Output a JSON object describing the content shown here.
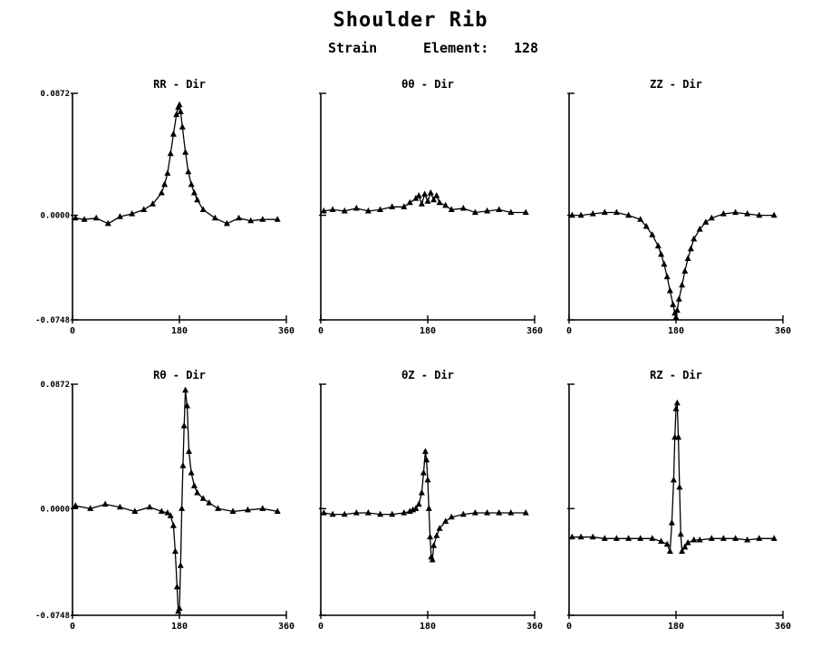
{
  "figure": {
    "title": "Shoulder Rib",
    "subtitle": "Strain",
    "element_label": "Element:",
    "element_value": "128"
  },
  "chart_data": [
    {
      "type": "line",
      "title": "RR - Dir",
      "xticks": [
        "0",
        "180",
        "360"
      ],
      "yticks": [
        "0.0872",
        "0.0000",
        "-0.0748"
      ],
      "xlim": [
        0,
        360
      ],
      "ylim": [
        -0.0748,
        0.0872
      ],
      "x": [
        5,
        20,
        40,
        60,
        80,
        100,
        120,
        135,
        150,
        155,
        160,
        165,
        170,
        175,
        178,
        180,
        182,
        185,
        190,
        195,
        200,
        205,
        210,
        220,
        240,
        260,
        280,
        300,
        320,
        345
      ],
      "y": [
        -0.002,
        -0.003,
        -0.002,
        -0.006,
        -0.001,
        0.001,
        0.004,
        0.008,
        0.016,
        0.022,
        0.03,
        0.044,
        0.058,
        0.072,
        0.077,
        0.079,
        0.074,
        0.063,
        0.045,
        0.031,
        0.022,
        0.016,
        0.011,
        0.004,
        -0.002,
        -0.006,
        -0.002,
        -0.004,
        -0.003,
        -0.003
      ]
    },
    {
      "type": "line",
      "title": "θθ - Dir",
      "xticks": [
        "0",
        "180",
        "360"
      ],
      "xlim": [
        0,
        360
      ],
      "ylim": [
        -0.0748,
        0.0872
      ],
      "x": [
        5,
        20,
        40,
        60,
        80,
        100,
        120,
        140,
        150,
        160,
        165,
        170,
        175,
        180,
        185,
        190,
        195,
        200,
        210,
        220,
        240,
        260,
        280,
        300,
        320,
        345
      ],
      "y": [
        0.003,
        0.004,
        0.003,
        0.005,
        0.003,
        0.004,
        0.006,
        0.006,
        0.009,
        0.012,
        0.014,
        0.008,
        0.015,
        0.01,
        0.016,
        0.011,
        0.014,
        0.009,
        0.007,
        0.004,
        0.005,
        0.002,
        0.003,
        0.004,
        0.002,
        0.002
      ]
    },
    {
      "type": "line",
      "title": "ZZ - Dir",
      "xticks": [
        "0",
        "180",
        "360"
      ],
      "xlim": [
        0,
        360
      ],
      "ylim": [
        -0.0748,
        0.0872
      ],
      "x": [
        5,
        20,
        40,
        60,
        80,
        100,
        120,
        130,
        140,
        150,
        155,
        160,
        165,
        170,
        175,
        178,
        180,
        182,
        185,
        190,
        195,
        200,
        205,
        210,
        220,
        230,
        240,
        260,
        280,
        300,
        320,
        345
      ],
      "y": [
        0.0,
        0.0,
        0.001,
        0.002,
        0.002,
        0.0,
        -0.003,
        -0.008,
        -0.014,
        -0.022,
        -0.028,
        -0.035,
        -0.044,
        -0.054,
        -0.064,
        -0.07,
        -0.073,
        -0.068,
        -0.06,
        -0.05,
        -0.04,
        -0.031,
        -0.024,
        -0.017,
        -0.01,
        -0.005,
        -0.002,
        0.001,
        0.002,
        0.001,
        0.0,
        0.0
      ]
    },
    {
      "type": "line",
      "title": "Rθ - Dir",
      "xticks": [
        "0",
        "180",
        "360"
      ],
      "yticks": [
        "0.0872",
        "0.0000",
        "-0.0748"
      ],
      "xlim": [
        0,
        360
      ],
      "ylim": [
        -0.0748,
        0.0872
      ],
      "x": [
        5,
        30,
        55,
        80,
        105,
        130,
        150,
        160,
        165,
        170,
        173,
        176,
        178,
        180,
        182,
        184,
        186,
        188,
        190,
        193,
        196,
        200,
        205,
        210,
        220,
        230,
        245,
        270,
        295,
        320,
        345
      ],
      "y": [
        0.002,
        0.0,
        0.003,
        0.001,
        -0.002,
        0.001,
        -0.002,
        -0.003,
        -0.005,
        -0.012,
        -0.03,
        -0.055,
        -0.072,
        -0.07,
        -0.04,
        0.0,
        0.03,
        0.058,
        0.083,
        0.072,
        0.04,
        0.025,
        0.016,
        0.011,
        0.007,
        0.004,
        0.0,
        -0.002,
        -0.001,
        0.0,
        -0.002
      ]
    },
    {
      "type": "line",
      "title": "θZ - Dir",
      "xticks": [
        "0",
        "180",
        "360"
      ],
      "xlim": [
        0,
        360
      ],
      "ylim": [
        -0.0748,
        0.0872
      ],
      "x": [
        5,
        20,
        40,
        60,
        80,
        100,
        120,
        140,
        150,
        155,
        160,
        165,
        170,
        173,
        176,
        178,
        180,
        182,
        184,
        186,
        188,
        190,
        195,
        200,
        210,
        220,
        240,
        260,
        280,
        300,
        320,
        345
      ],
      "y": [
        -0.003,
        -0.004,
        -0.004,
        -0.003,
        -0.003,
        -0.004,
        -0.004,
        -0.003,
        -0.002,
        -0.001,
        0.0,
        0.003,
        0.011,
        0.025,
        0.04,
        0.034,
        0.02,
        0.0,
        -0.02,
        -0.034,
        -0.036,
        -0.026,
        -0.019,
        -0.014,
        -0.009,
        -0.006,
        -0.004,
        -0.003,
        -0.003,
        -0.003,
        -0.003,
        -0.003
      ]
    },
    {
      "type": "line",
      "title": "RZ - Dir",
      "xticks": [
        "0",
        "180",
        "360"
      ],
      "xlim": [
        0,
        360
      ],
      "ylim": [
        -0.0748,
        0.0872
      ],
      "x": [
        5,
        20,
        40,
        60,
        80,
        100,
        120,
        140,
        155,
        165,
        170,
        173,
        176,
        178,
        180,
        182,
        184,
        186,
        188,
        190,
        195,
        200,
        210,
        220,
        240,
        260,
        280,
        300,
        320,
        345
      ],
      "y": [
        -0.02,
        -0.02,
        -0.02,
        -0.021,
        -0.021,
        -0.021,
        -0.021,
        -0.021,
        -0.023,
        -0.025,
        -0.03,
        -0.01,
        0.02,
        0.05,
        0.07,
        0.074,
        0.05,
        0.015,
        -0.018,
        -0.03,
        -0.027,
        -0.024,
        -0.022,
        -0.022,
        -0.021,
        -0.021,
        -0.021,
        -0.022,
        -0.021,
        -0.021
      ]
    }
  ]
}
